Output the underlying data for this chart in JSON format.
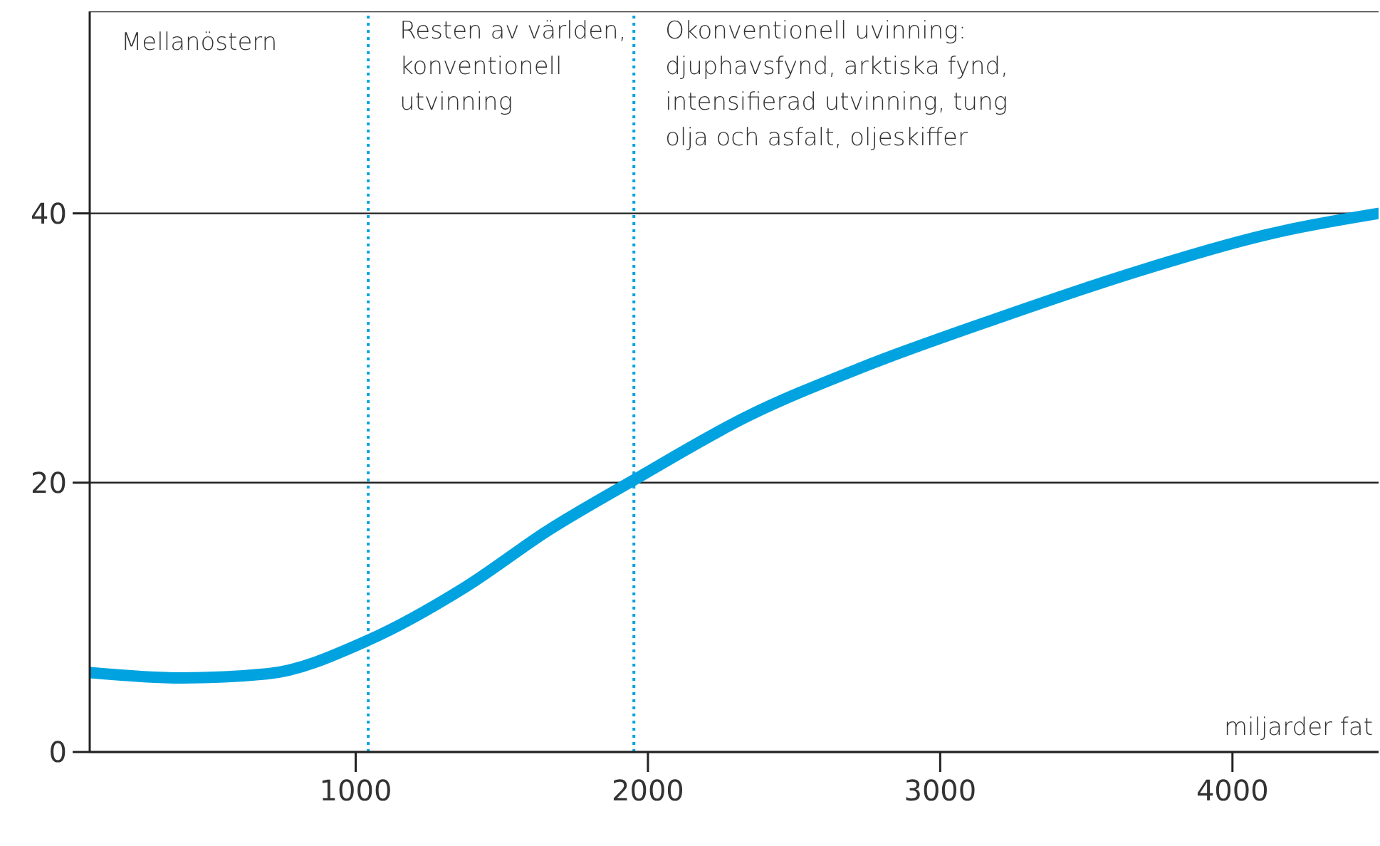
{
  "chart_data": {
    "type": "line",
    "xlabel": "miljarder fat",
    "x": [
      90,
      406,
      696,
      1043,
      1372,
      1662,
      1952,
      2338,
      2725,
      3208,
      3691,
      4174,
      4500
    ],
    "series": [
      {
        "color": "#00a3e0",
        "values": [
          5.9,
          5.5,
          5.8,
          8.3,
          12.2,
          16.5,
          20.2,
          24.9,
          28.5,
          32.3,
          35.8,
          38.7,
          40
        ]
      }
    ],
    "xlim": [
      90,
      4500
    ],
    "xticks": [
      1000,
      2000,
      3000,
      4000
    ],
    "ylim": [
      0,
      55
    ],
    "yticks": [
      0,
      20,
      40
    ],
    "grid": "y",
    "marker": "none",
    "line_style": "solid",
    "legend": false,
    "ref_lines": [
      {
        "axis": "x",
        "value": 1043,
        "color": "#00a3e0",
        "line_style": "dotted"
      },
      {
        "axis": "x",
        "value": 1952,
        "color": "#00a3e0",
        "line_style": "dotted"
      }
    ],
    "annotations": [
      "Mellanöstern",
      {
        "text": "Resten av världen,\nkonventionell\nutvinning",
        "x": 1043,
        "y": 53
      },
      {
        "text": "Okonventionell uvinning:\ndjuphavsfynd, arktiska fynd,\nintensifierad utvinning, tung\nolja och asfalt, oljeskiffer",
        "x": 1952,
        "y": 53
      }
    ]
  }
}
